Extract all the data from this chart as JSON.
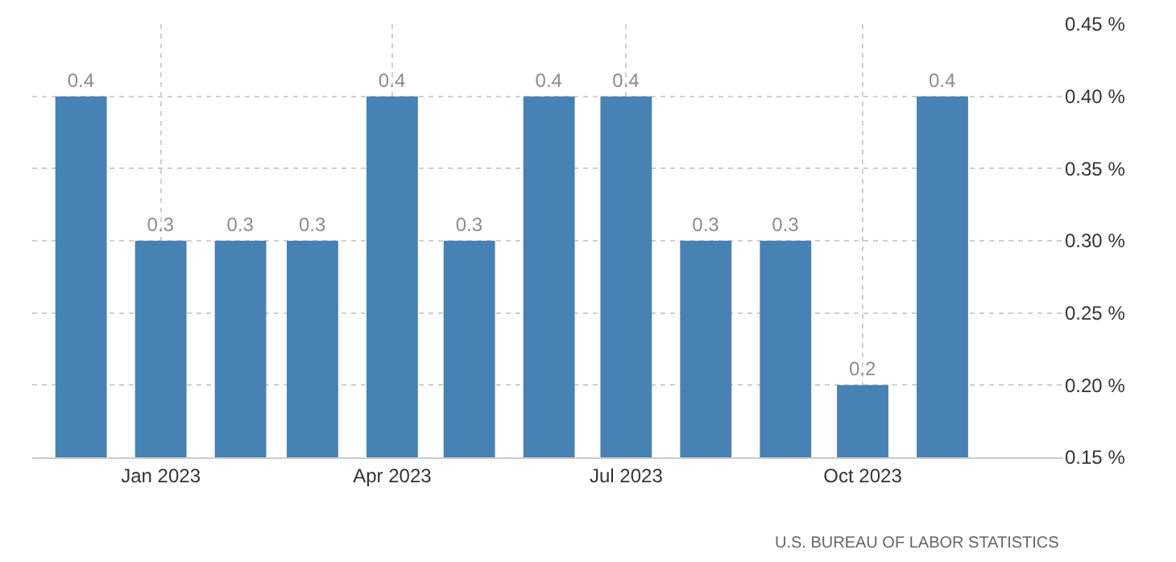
{
  "chart_data": {
    "type": "bar",
    "x": [
      "2022-12",
      "2023-01",
      "2023-02",
      "2023-03",
      "2023-04",
      "2023-05",
      "2023-06",
      "2023-07",
      "2023-08",
      "2023-09",
      "2023-10",
      "2023-11"
    ],
    "values": [
      0.4,
      0.3,
      0.3,
      0.3,
      0.4,
      0.3,
      0.4,
      0.4,
      0.3,
      0.3,
      0.2,
      0.4
    ],
    "color": "#4682b4",
    "data_labels": true,
    "xlim": [
      "2022-11-12",
      "2023-12-18"
    ],
    "xticks": [
      {
        "value": "2023-01",
        "label": "Jan 2023"
      },
      {
        "value": "2023-04",
        "label": "Apr 2023"
      },
      {
        "value": "2023-07",
        "label": "Jul 2023"
      },
      {
        "value": "2023-10",
        "label": "Oct 2023"
      }
    ],
    "ylim": [
      0.15,
      0.45
    ],
    "yticks": [
      {
        "value": 0.15,
        "label": "0.15 %"
      },
      {
        "value": 0.2,
        "label": "0.20 %"
      },
      {
        "value": 0.25,
        "label": "0.25 %"
      },
      {
        "value": 0.3,
        "label": "0.30 %"
      },
      {
        "value": 0.35,
        "label": "0.35 %"
      },
      {
        "value": 0.4,
        "label": "0.40 %"
      },
      {
        "value": 0.45,
        "label": "0.45 %"
      }
    ],
    "grid": true,
    "annotations": [
      "U.S. BUREAU OF LABOR STATISTICS"
    ]
  }
}
